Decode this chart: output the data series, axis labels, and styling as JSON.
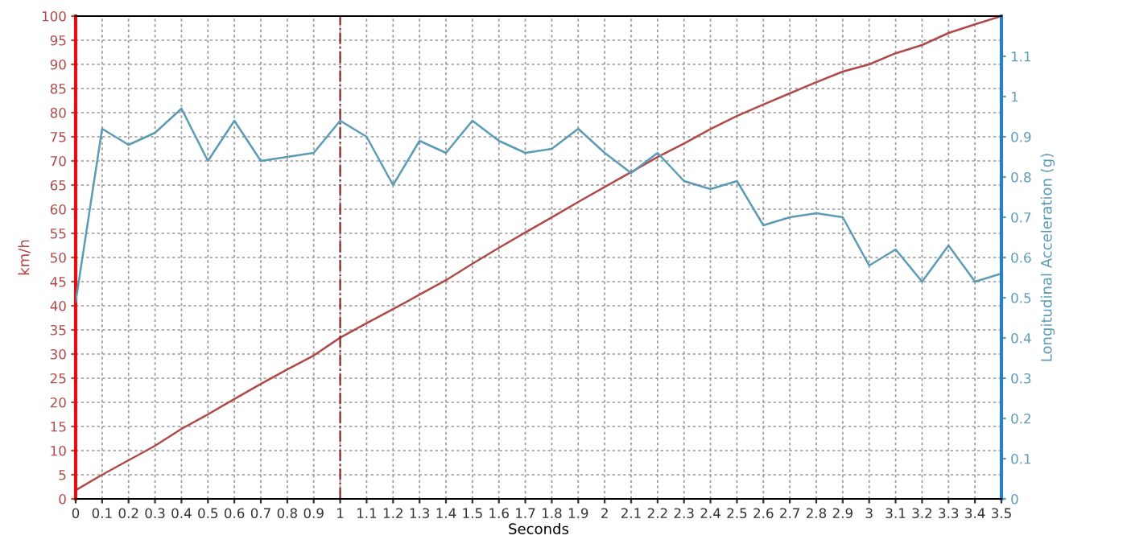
{
  "chart_data": {
    "type": "line",
    "xlabel": "Seconds",
    "ylabel": "km/h",
    "y2label": "Longitudinal Acceleration (g)",
    "x": [
      0,
      0.1,
      0.2,
      0.3,
      0.4,
      0.5,
      0.6,
      0.7,
      0.8,
      0.9,
      1,
      1.1,
      1.2,
      1.3,
      1.4,
      1.5,
      1.6,
      1.7,
      1.8,
      1.9,
      2,
      2.1,
      2.2,
      2.3,
      2.4,
      2.5,
      2.6,
      2.7,
      2.8,
      2.9,
      3,
      3.1,
      3.2,
      3.3,
      3.4,
      3.5
    ],
    "series": [
      {
        "color": "#b04a4a",
        "values": [
          1.8,
          5,
          8,
          11,
          14.5,
          17.5,
          20.7,
          23.8,
          26.8,
          29.7,
          33.4,
          36.4,
          39.3,
          42.3,
          45.3,
          48.7,
          52,
          55.2,
          58.3,
          61.5,
          64.6,
          67.7,
          70.8,
          73.6,
          76.6,
          79.3,
          81.7,
          84,
          86.3,
          88.5,
          90,
          92.3,
          94,
          96.5,
          98.3,
          100
        ]
      },
      {
        "color": "#5b9bb5",
        "axis": "y2",
        "values": [
          0.49,
          0.92,
          0.88,
          0.91,
          0.97,
          0.84,
          0.94,
          0.84,
          0.85,
          0.86,
          0.94,
          0.9,
          0.78,
          0.89,
          0.86,
          0.94,
          0.89,
          0.86,
          0.87,
          0.92,
          0.86,
          0.81,
          0.86,
          0.79,
          0.77,
          0.79,
          0.68,
          0.7,
          0.71,
          0.7,
          0.58,
          0.62,
          0.54,
          0.63,
          0.54,
          0.56
        ]
      }
    ],
    "xlim": [
      0,
      3.5
    ],
    "xticks": [
      0,
      0.1,
      0.2,
      0.3,
      0.4,
      0.5,
      0.6,
      0.7,
      0.8,
      0.9,
      1,
      1.1,
      1.2,
      1.3,
      1.4,
      1.5,
      1.6,
      1.7,
      1.8,
      1.9,
      2,
      2.1,
      2.2,
      2.3,
      2.4,
      2.5,
      2.6,
      2.7,
      2.8,
      2.9,
      3,
      3.1,
      3.2,
      3.3,
      3.4,
      3.5
    ],
    "ylim": [
      0,
      100
    ],
    "yticks": [
      0,
      5,
      10,
      15,
      20,
      25,
      30,
      35,
      40,
      45,
      50,
      55,
      60,
      65,
      70,
      75,
      80,
      85,
      90,
      95,
      100
    ],
    "y2lim": [
      0,
      1.2
    ],
    "y2ticks": [
      0,
      0.1,
      0.2,
      0.3,
      0.4,
      0.5,
      0.6,
      0.7,
      0.8,
      0.9,
      1,
      1.1
    ],
    "ref_lines": [
      {
        "axis": "x",
        "value": 1,
        "color": "#8b2a2a",
        "line_style": "dashdot"
      }
    ],
    "grid": true,
    "marker": "none",
    "line_style": "solid"
  }
}
